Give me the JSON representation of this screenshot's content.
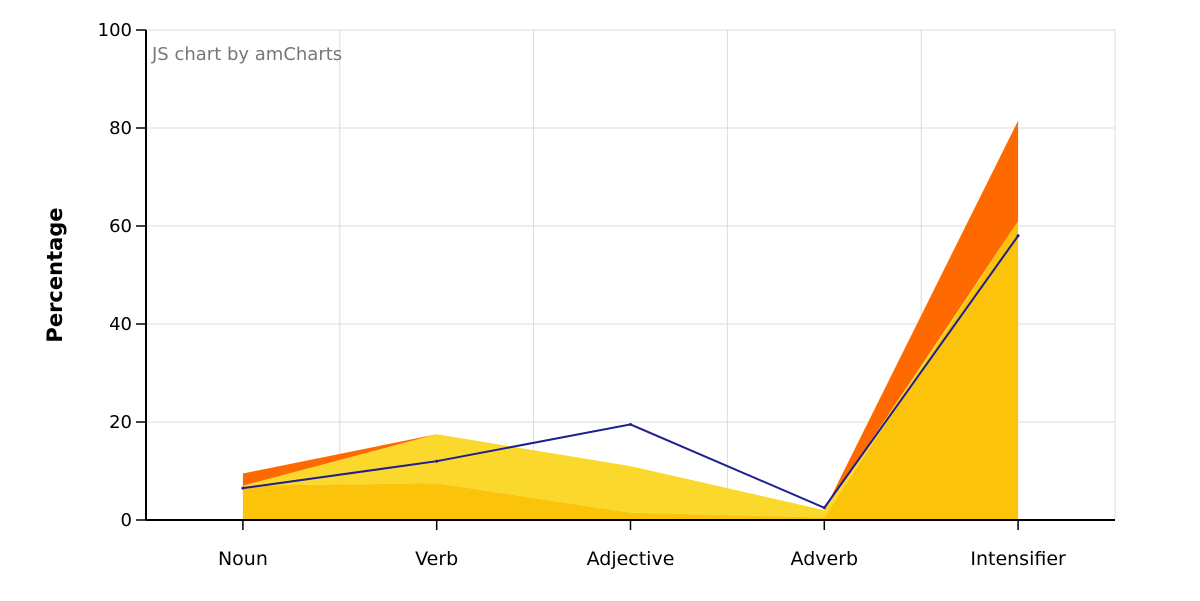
{
  "chart_data": {
    "type": "area",
    "categories": [
      "Noun",
      "Verb",
      "Adjective",
      "Adverb",
      "Intensifier"
    ],
    "ylabel": "Percentage",
    "xlabel": "",
    "ylim": [
      0,
      100
    ],
    "yticks": [
      0,
      20,
      40,
      60,
      80,
      100
    ],
    "grid": true,
    "credit": "JS chart by amCharts",
    "stacked": true,
    "series": [
      {
        "values": [
          7,
          7.5,
          1.5,
          0.5,
          61
        ],
        "color": "#FBC30A",
        "kind": "area"
      },
      {
        "values": [
          0,
          10,
          9.5,
          1.5,
          0
        ],
        "color": "#FAD92C",
        "kind": "area"
      },
      {
        "values": [
          2.5,
          0,
          0,
          0,
          20.5
        ],
        "color": "#FF6A00",
        "kind": "area"
      },
      {
        "values": [
          6.5,
          12,
          19.5,
          2.5,
          58
        ],
        "color": "#1F1F8F",
        "kind": "line"
      }
    ]
  }
}
